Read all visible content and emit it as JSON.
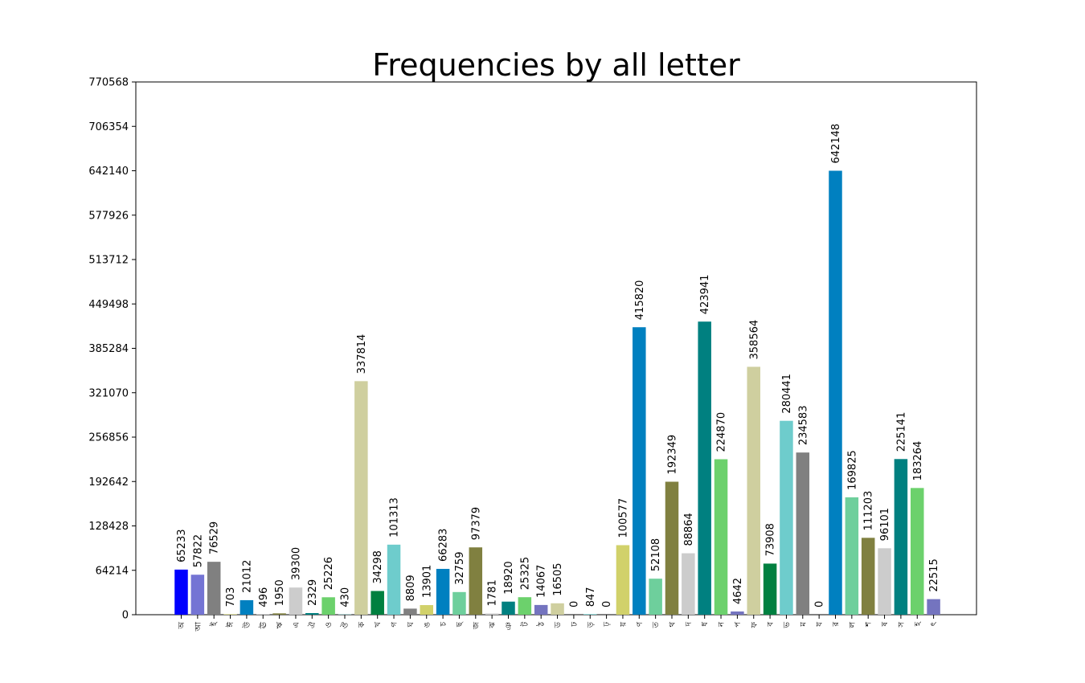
{
  "chart_data": {
    "type": "bar",
    "title": "Frequencies by all letter",
    "xlabel": "",
    "ylabel": "",
    "ylim": [
      0,
      770568
    ],
    "yticks": [
      0,
      64214,
      128428,
      192642,
      256856,
      321070,
      385284,
      449498,
      513712,
      577926,
      642140,
      706354,
      770568
    ],
    "grid": false,
    "legend": "none",
    "categories": [
      "অ",
      "আ",
      "ই",
      "ঈ",
      "উ",
      "ঊ",
      "ঋ",
      "এ",
      "ঐ",
      "ও",
      "ঔ",
      "ক",
      "খ",
      "গ",
      "ঘ",
      "ঙ",
      "চ",
      "ছ",
      "জ",
      "ঝ",
      "ঞ",
      "ট",
      "ঠ",
      "ড",
      "ঢ",
      "ড়",
      "ঢ়",
      "য়",
      "ণ",
      "ত",
      "থ",
      "দ",
      "ধ",
      "ন",
      "প",
      "ফ",
      "ব",
      "ভ",
      "ম",
      "য",
      "র",
      "ল",
      "শ",
      "ষ",
      "স",
      "হ",
      "ৎ"
    ],
    "values": [
      65233,
      57822,
      76529,
      703,
      21012,
      496,
      1950,
      39300,
      2329,
      25226,
      430,
      337814,
      34298,
      101313,
      8809,
      13901,
      66283,
      32759,
      97379,
      1781,
      18920,
      25325,
      14067,
      16505,
      0,
      847,
      0,
      100577,
      415820,
      52108,
      192349,
      88864,
      423941,
      224870,
      4642,
      358564,
      73908,
      280441,
      234583,
      0,
      642148,
      169825,
      111203,
      96101,
      225141,
      183264,
      22515
    ],
    "colors": [
      "#0000ff",
      "#7474d4",
      "#808080",
      "#d2d26a",
      "#0080c0",
      "#c0c0c0",
      "#808040",
      "#cccccc",
      "#008080",
      "#6cd16c",
      "#74cece",
      "#cfcf9f",
      "#008040",
      "#6ecccc",
      "#808080",
      "#d1d16a",
      "#0080c0",
      "#6ecf9c",
      "#808040",
      "#cccccc",
      "#008080",
      "#6cd16c",
      "#7474bf",
      "#cfcf9f",
      "#008040",
      "#6ecccc",
      "#808080",
      "#d1d16a",
      "#0080c0",
      "#6ecf9c",
      "#808040",
      "#cccccc",
      "#008080",
      "#6cd16c",
      "#7474bf",
      "#cfcf9f",
      "#008040",
      "#6ecccc",
      "#808080",
      "#d1d16a",
      "#0080c0",
      "#6ecf9c",
      "#808040",
      "#cccccc",
      "#008080",
      "#6cd16c",
      "#7474bf"
    ]
  }
}
